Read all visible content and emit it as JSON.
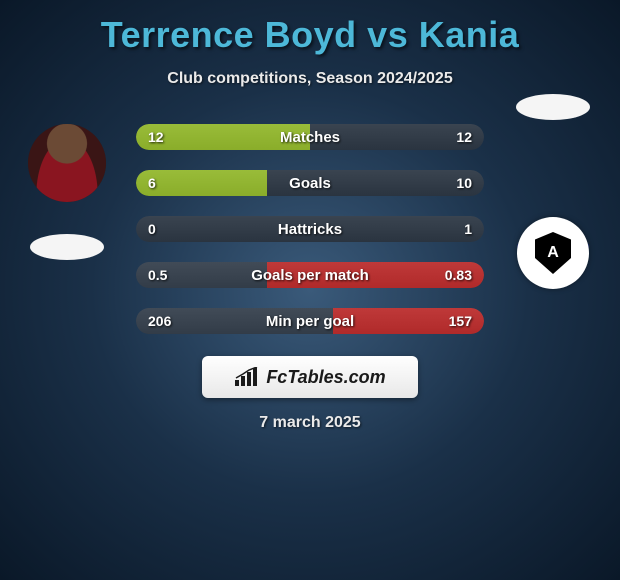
{
  "title": "Terrence Boyd vs Kania",
  "subtitle": "Club competitions, Season 2024/2025",
  "date": "7 march 2025",
  "footer_brand": "FcTables.com",
  "colors": {
    "left_accent": "#8aad2a",
    "right_accent": "#b02a2a",
    "bar_track": "#323c48",
    "title_color": "#4db8d8"
  },
  "player_left": {
    "name": "Terrence Boyd"
  },
  "player_right": {
    "name": "Kania"
  },
  "stats": [
    {
      "label": "Matches",
      "left_val": "12",
      "right_val": "12",
      "left_pct": 50,
      "right_pct": 50,
      "left_color": "#8aad2a",
      "right_color": "#323c48"
    },
    {
      "label": "Goals",
      "left_val": "6",
      "right_val": "10",
      "left_pct": 37.5,
      "right_pct": 62.5,
      "left_color": "#8aad2a",
      "right_color": "#323c48"
    },
    {
      "label": "Hattricks",
      "left_val": "0",
      "right_val": "1",
      "left_pct": 0,
      "right_pct": 100,
      "left_color": "#8aad2a",
      "right_color": "#323c48"
    },
    {
      "label": "Goals per match",
      "left_val": "0.5",
      "right_val": "0.83",
      "left_pct": 37.6,
      "right_pct": 62.4,
      "left_color": "#323c48",
      "right_color": "#b02a2a"
    },
    {
      "label": "Min per goal",
      "left_val": "206",
      "right_val": "157",
      "left_pct": 56.7,
      "right_pct": 43.3,
      "left_color": "#323c48",
      "right_color": "#b02a2a"
    }
  ]
}
